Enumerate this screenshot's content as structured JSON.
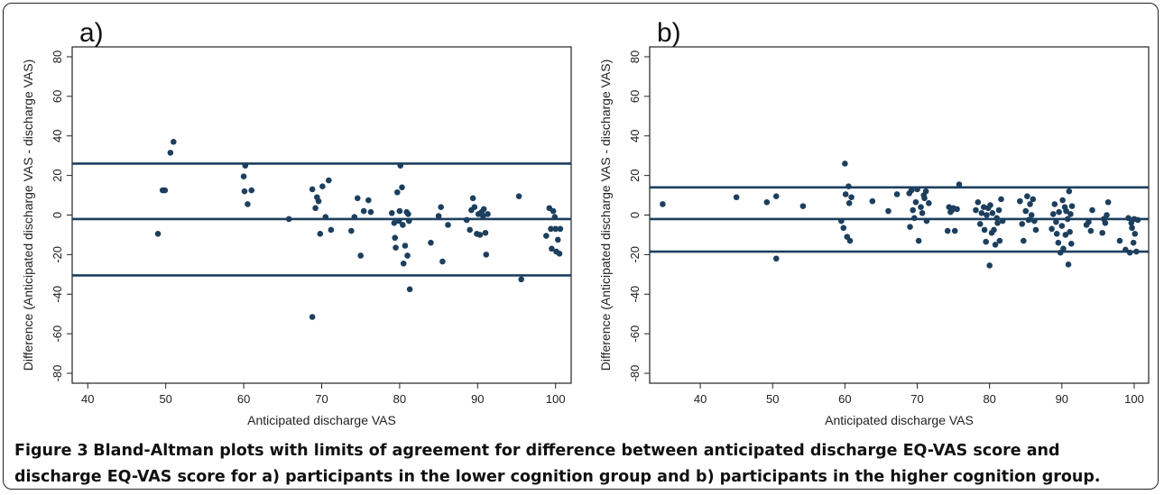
{
  "caption": {
    "label": "Figure 3",
    "text": "Bland-Altman plots with limits of agreement for difference between anticipated discharge EQ-VAS score and discharge EQ-VAS score for a) participants in the lower cognition group and b) participants in the higher cognition group."
  },
  "chart_data": [
    {
      "type": "scatter",
      "panel_label": "a)",
      "xlabel": "Anticipated discharge VAS",
      "ylabel": "Difference (Anticipated discharge VAS - discharge VAS)",
      "xlim": [
        38,
        102
      ],
      "ylim": [
        -85,
        85
      ],
      "xticks": [
        40,
        50,
        60,
        70,
        80,
        90,
        100
      ],
      "yticks": [
        -80,
        -60,
        -40,
        -20,
        0,
        20,
        40,
        60,
        80
      ],
      "hlines": {
        "upper_limit": 26,
        "mean_difference": -2,
        "lower_limit": -30.5
      },
      "colors": {
        "points": "#1d3f5e",
        "lines": "#1d3f5e",
        "axis": "#222222"
      },
      "points": [
        [
          49,
          -9.5
        ],
        [
          49.6,
          12.5
        ],
        [
          49.9,
          12.5
        ],
        [
          50.6,
          31.5
        ],
        [
          51,
          37
        ],
        [
          60,
          19.5
        ],
        [
          60.2,
          25
        ],
        [
          60.1,
          12
        ],
        [
          61,
          12.5
        ],
        [
          60.5,
          5.5
        ],
        [
          65.8,
          -2
        ],
        [
          68.8,
          -51.5
        ],
        [
          68.8,
          13
        ],
        [
          69.2,
          3.5
        ],
        [
          69.4,
          9
        ],
        [
          69.6,
          7
        ],
        [
          69.8,
          -9.5
        ],
        [
          70.1,
          14.5
        ],
        [
          70.5,
          -1
        ],
        [
          70.9,
          17.5
        ],
        [
          71.2,
          -7.5
        ],
        [
          73.8,
          -8
        ],
        [
          74.2,
          -1
        ],
        [
          74.6,
          8.5
        ],
        [
          75,
          -20.5
        ],
        [
          75.4,
          2
        ],
        [
          76,
          7.5
        ],
        [
          76.3,
          1.5
        ],
        [
          79,
          1
        ],
        [
          79.3,
          -4
        ],
        [
          79.4,
          -11.5
        ],
        [
          79.5,
          -16.5
        ],
        [
          79.7,
          11.5
        ],
        [
          79.9,
          -3
        ],
        [
          80,
          2
        ],
        [
          80.1,
          25
        ],
        [
          80.3,
          14
        ],
        [
          80.4,
          -5
        ],
        [
          80.5,
          -24.5
        ],
        [
          80.7,
          -15.5
        ],
        [
          80.9,
          1.5
        ],
        [
          81,
          -20.5
        ],
        [
          81.2,
          -3
        ],
        [
          81.3,
          -37.5
        ],
        [
          81.1,
          0.5
        ],
        [
          84,
          -14
        ],
        [
          85,
          -0.5
        ],
        [
          85.3,
          4
        ],
        [
          85.5,
          -23.5
        ],
        [
          86.2,
          -5
        ],
        [
          88.6,
          -2.5
        ],
        [
          89,
          -7.5
        ],
        [
          89.2,
          2.5
        ],
        [
          89.4,
          8.5
        ],
        [
          89.6,
          4
        ],
        [
          89.9,
          -9.5
        ],
        [
          90.1,
          0.5
        ],
        [
          90.3,
          -10
        ],
        [
          90.5,
          1.5
        ],
        [
          90.7,
          -0.5
        ],
        [
          90.8,
          3
        ],
        [
          91,
          -9
        ],
        [
          91.1,
          -20
        ],
        [
          91.3,
          0.5
        ],
        [
          95.3,
          9.5
        ],
        [
          95.6,
          -32.5
        ],
        [
          98.8,
          -10.5
        ],
        [
          99.2,
          3.5
        ],
        [
          99.4,
          -7
        ],
        [
          99.5,
          -17
        ],
        [
          99.7,
          2
        ],
        [
          99.9,
          -1
        ],
        [
          100,
          -7
        ],
        [
          100.1,
          -18.5
        ],
        [
          100.3,
          -12.5
        ],
        [
          100.5,
          -19.5
        ],
        [
          100.6,
          -7
        ]
      ]
    },
    {
      "type": "scatter",
      "panel_label": "b)",
      "xlabel": "Anticipated discharge VAS",
      "ylabel": "Difference (Anticipated discharge VAS - discharge VAS)",
      "xlim": [
        33,
        102
      ],
      "ylim": [
        -85,
        85
      ],
      "xticks": [
        40,
        50,
        60,
        70,
        80,
        90,
        100
      ],
      "yticks": [
        -80,
        -60,
        -40,
        -20,
        0,
        20,
        40,
        60,
        80
      ],
      "hlines": {
        "upper_limit": 14,
        "mean_difference": -2,
        "lower_limit": -18.5
      },
      "colors": {
        "points": "#1d3f5e",
        "lines": "#1d3f5e",
        "axis": "#222222"
      },
      "points": [
        [
          34.8,
          5.5
        ],
        [
          45,
          9
        ],
        [
          49.2,
          6.5
        ],
        [
          50.5,
          9.5
        ],
        [
          50.5,
          -22
        ],
        [
          54.2,
          4.5
        ],
        [
          59.5,
          -3
        ],
        [
          59.8,
          -6.5
        ],
        [
          60,
          26
        ],
        [
          60.1,
          10.5
        ],
        [
          60.3,
          -11
        ],
        [
          60.5,
          14.5
        ],
        [
          60.6,
          6
        ],
        [
          60.7,
          -13
        ],
        [
          60.9,
          9
        ],
        [
          63.8,
          7
        ],
        [
          66,
          2
        ],
        [
          67.2,
          10.5
        ],
        [
          68.9,
          11
        ],
        [
          69,
          -6
        ],
        [
          69.2,
          12.5
        ],
        [
          69.4,
          2.5
        ],
        [
          69.6,
          -1.5
        ],
        [
          69.8,
          6.5
        ],
        [
          70,
          13
        ],
        [
          70.2,
          -13
        ],
        [
          70.5,
          4
        ],
        [
          70.7,
          1
        ],
        [
          70.9,
          10
        ],
        [
          71,
          8.5
        ],
        [
          71.2,
          12
        ],
        [
          71.3,
          -3
        ],
        [
          71.6,
          6
        ],
        [
          74.2,
          -8
        ],
        [
          74.4,
          4
        ],
        [
          74.6,
          1.5
        ],
        [
          74.8,
          2.5
        ],
        [
          75,
          3.5
        ],
        [
          75.2,
          -8
        ],
        [
          75.5,
          3
        ],
        [
          75.8,
          15.5
        ],
        [
          78.1,
          2.5
        ],
        [
          78.4,
          6.5
        ],
        [
          78.7,
          -4.5
        ],
        [
          78.9,
          1
        ],
        [
          79.2,
          4
        ],
        [
          79.3,
          -7.5
        ],
        [
          79.5,
          -13.5
        ],
        [
          79.6,
          0
        ],
        [
          79.8,
          3.5
        ],
        [
          80,
          -25.5
        ],
        [
          80.1,
          5
        ],
        [
          80.3,
          -9
        ],
        [
          80.4,
          1
        ],
        [
          80.6,
          -7.5
        ],
        [
          80.8,
          -15
        ],
        [
          81,
          -1.5
        ],
        [
          81.1,
          -4
        ],
        [
          81.3,
          2.5
        ],
        [
          81.4,
          -13
        ],
        [
          81.6,
          8
        ],
        [
          81.8,
          -3
        ],
        [
          84.2,
          7
        ],
        [
          84.5,
          -4.5
        ],
        [
          84.7,
          -13
        ],
        [
          85,
          2
        ],
        [
          85.2,
          9.5
        ],
        [
          85.4,
          -2.5
        ],
        [
          85.6,
          5.5
        ],
        [
          85.8,
          0
        ],
        [
          86,
          8
        ],
        [
          86.2,
          -3
        ],
        [
          86.4,
          -7.5
        ],
        [
          88.6,
          -7
        ],
        [
          88.8,
          0.5
        ],
        [
          89,
          5.5
        ],
        [
          89.2,
          -3.5
        ],
        [
          89.3,
          -9.5
        ],
        [
          89.5,
          -14
        ],
        [
          89.6,
          1.5
        ],
        [
          89.8,
          -19
        ],
        [
          90,
          -5.5
        ],
        [
          90.1,
          7.5
        ],
        [
          90.2,
          -17
        ],
        [
          90.4,
          4
        ],
        [
          90.5,
          -10
        ],
        [
          90.6,
          2
        ],
        [
          90.8,
          -2
        ],
        [
          90.9,
          -25
        ],
        [
          91,
          12
        ],
        [
          91.1,
          -8.5
        ],
        [
          91.2,
          0.5
        ],
        [
          91.3,
          -14.5
        ],
        [
          91.4,
          4.5
        ],
        [
          93.4,
          -5
        ],
        [
          93.7,
          -3.5
        ],
        [
          94,
          -8
        ],
        [
          94.2,
          2.5
        ],
        [
          95.6,
          -9
        ],
        [
          95.8,
          -2
        ],
        [
          96,
          -4
        ],
        [
          96.2,
          0
        ],
        [
          96.4,
          6.5
        ],
        [
          98,
          -13
        ],
        [
          98.8,
          -17.5
        ],
        [
          99.2,
          -1.5
        ],
        [
          99.4,
          -19
        ],
        [
          99.6,
          -4
        ],
        [
          99.7,
          -6.5
        ],
        [
          99.9,
          -14
        ],
        [
          100,
          -2
        ],
        [
          100.1,
          -9.5
        ],
        [
          100.3,
          -18.5
        ],
        [
          100.5,
          -2.5
        ]
      ]
    }
  ]
}
